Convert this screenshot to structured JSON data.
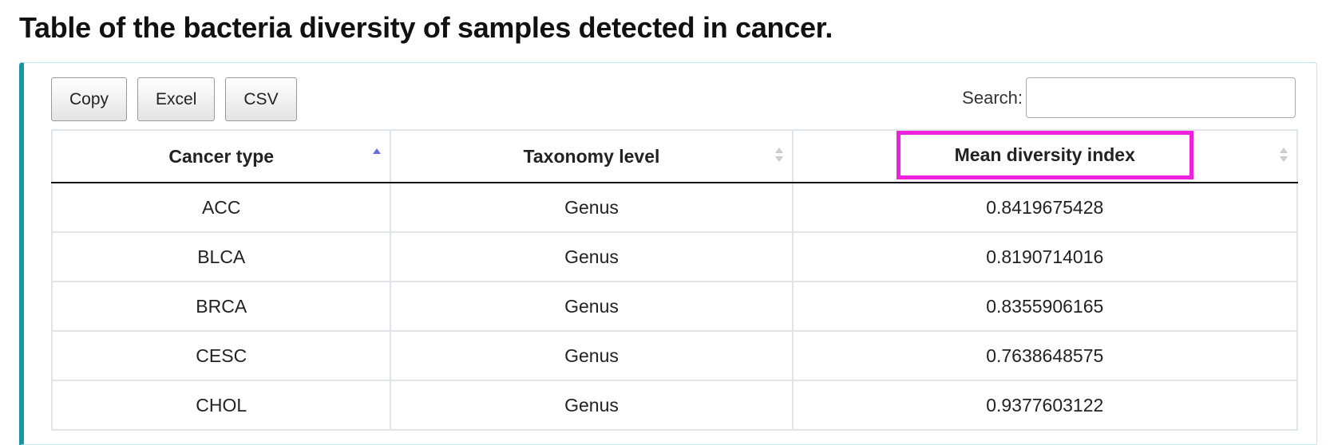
{
  "page": {
    "title": "Table of the bacteria diversity of samples detected in cancer."
  },
  "toolbar": {
    "buttons": [
      "Copy",
      "Excel",
      "CSV"
    ]
  },
  "search": {
    "label": "Search:",
    "value": "",
    "placeholder": ""
  },
  "table": {
    "columns": [
      {
        "label": "Cancer type",
        "sort": "ascending"
      },
      {
        "label": "Taxonomy level",
        "sort": "none"
      },
      {
        "label": "Mean diversity index",
        "sort": "none"
      }
    ],
    "rows": [
      [
        "ACC",
        "Genus",
        "0.8419675428"
      ],
      [
        "BLCA",
        "Genus",
        "0.8190714016"
      ],
      [
        "BRCA",
        "Genus",
        "0.8355906165"
      ],
      [
        "CESC",
        "Genus",
        "0.7638648575"
      ],
      [
        "CHOL",
        "Genus",
        "0.9377603122"
      ]
    ]
  },
  "colors": {
    "panel_accent": "#1a95a8",
    "highlight": "#ee22dd",
    "sort_active": "#6a6adf",
    "sort_inactive": "#cccccc"
  },
  "icons": {
    "sort_asc": "sort-ascending-icon",
    "sort_both": "sort-both-icon"
  }
}
